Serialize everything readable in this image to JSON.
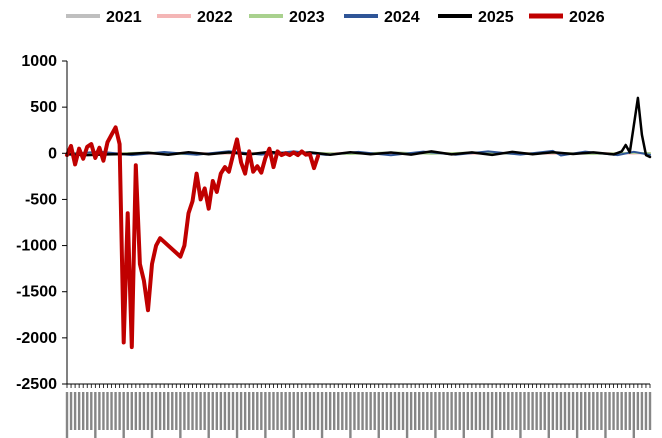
{
  "chart_data": {
    "type": "line",
    "title": "",
    "xlabel": "",
    "ylabel": "",
    "ylim": [
      -2500,
      1000
    ],
    "yticks": [
      1000,
      500,
      0,
      -500,
      -1000,
      -1500,
      -2000,
      -2500
    ],
    "ytick_labels": [
      "1000",
      "500",
      "0",
      "-500",
      "-1000",
      "-1500",
      "-2000",
      "-2500"
    ],
    "x_count": 145,
    "xticks_dense": true,
    "grid": false,
    "legend_position": "top",
    "series": [
      {
        "name": "2021",
        "color": "#bfbfbf",
        "width": 2,
        "points": [
          [
            0,
            2
          ],
          [
            10,
            -8
          ],
          [
            20,
            6
          ],
          [
            30,
            -4
          ],
          [
            40,
            5
          ],
          [
            50,
            -6
          ],
          [
            60,
            4
          ],
          [
            70,
            -3
          ],
          [
            80,
            8
          ],
          [
            90,
            -5
          ],
          [
            100,
            6
          ],
          [
            110,
            -4
          ],
          [
            120,
            3
          ],
          [
            130,
            -6
          ],
          [
            140,
            4
          ],
          [
            144,
            -2
          ]
        ]
      },
      {
        "name": "2022",
        "color": "#f4b6b6",
        "width": 2,
        "points": [
          [
            0,
            -5
          ],
          [
            10,
            6
          ],
          [
            20,
            -7
          ],
          [
            30,
            5
          ],
          [
            40,
            -4
          ],
          [
            50,
            8
          ],
          [
            60,
            -6
          ],
          [
            70,
            5
          ],
          [
            80,
            -8
          ],
          [
            90,
            6
          ],
          [
            100,
            -4
          ],
          [
            110,
            5
          ],
          [
            120,
            -6
          ],
          [
            130,
            4
          ],
          [
            140,
            -3
          ],
          [
            144,
            3
          ]
        ]
      },
      {
        "name": "2023",
        "color": "#a9d18e",
        "width": 2,
        "points": [
          [
            0,
            4
          ],
          [
            10,
            -6
          ],
          [
            20,
            8
          ],
          [
            30,
            -10
          ],
          [
            40,
            5
          ],
          [
            50,
            -4
          ],
          [
            60,
            7
          ],
          [
            70,
            -8
          ],
          [
            80,
            10
          ],
          [
            90,
            -6
          ],
          [
            100,
            8
          ],
          [
            110,
            -5
          ],
          [
            120,
            6
          ],
          [
            130,
            -7
          ],
          [
            140,
            5
          ],
          [
            144,
            2
          ]
        ]
      },
      {
        "name": "2024",
        "color": "#2f5597",
        "width": 2,
        "points": [
          [
            0,
            -10
          ],
          [
            8,
            18
          ],
          [
            16,
            -20
          ],
          [
            24,
            14
          ],
          [
            32,
            -16
          ],
          [
            40,
            22
          ],
          [
            48,
            -14
          ],
          [
            56,
            20
          ],
          [
            64,
            -18
          ],
          [
            72,
            15
          ],
          [
            80,
            -22
          ],
          [
            88,
            18
          ],
          [
            96,
            -16
          ],
          [
            104,
            20
          ],
          [
            112,
            -14
          ],
          [
            120,
            26
          ],
          [
            122,
            -24
          ],
          [
            128,
            18
          ],
          [
            136,
            -20
          ],
          [
            140,
            16
          ],
          [
            144,
            -18
          ]
        ]
      },
      {
        "name": "2025",
        "color": "#000000",
        "width": 2.5,
        "points": [
          [
            0,
            -10
          ],
          [
            5,
            -20
          ],
          [
            10,
            -12
          ],
          [
            15,
            -8
          ],
          [
            20,
            5
          ],
          [
            25,
            -15
          ],
          [
            30,
            12
          ],
          [
            35,
            -10
          ],
          [
            40,
            10
          ],
          [
            45,
            -12
          ],
          [
            50,
            15
          ],
          [
            55,
            -8
          ],
          [
            60,
            10
          ],
          [
            65,
            -15
          ],
          [
            70,
            12
          ],
          [
            75,
            -10
          ],
          [
            80,
            8
          ],
          [
            85,
            -14
          ],
          [
            90,
            20
          ],
          [
            95,
            -12
          ],
          [
            100,
            10
          ],
          [
            105,
            -18
          ],
          [
            110,
            15
          ],
          [
            115,
            -10
          ],
          [
            120,
            12
          ],
          [
            125,
            -8
          ],
          [
            130,
            10
          ],
          [
            135,
            -12
          ],
          [
            137,
            20
          ],
          [
            138,
            90
          ],
          [
            139,
            10
          ],
          [
            140,
            300
          ],
          [
            141,
            600
          ],
          [
            142,
            200
          ],
          [
            143,
            -20
          ],
          [
            144,
            -40
          ]
        ]
      },
      {
        "name": "2026",
        "color": "#c00000",
        "width": 4,
        "points": [
          [
            0,
            -20
          ],
          [
            1,
            80
          ],
          [
            2,
            -120
          ],
          [
            3,
            50
          ],
          [
            4,
            -60
          ],
          [
            5,
            70
          ],
          [
            6,
            100
          ],
          [
            7,
            -50
          ],
          [
            8,
            60
          ],
          [
            9,
            -80
          ],
          [
            10,
            120
          ],
          [
            11,
            200
          ],
          [
            12,
            280
          ],
          [
            13,
            100
          ],
          [
            14,
            -2050
          ],
          [
            15,
            -650
          ],
          [
            16,
            -2100
          ],
          [
            17,
            -130
          ],
          [
            18,
            -1200
          ],
          [
            19,
            -1380
          ],
          [
            20,
            -1700
          ],
          [
            21,
            -1200
          ],
          [
            22,
            -1000
          ],
          [
            23,
            -920
          ],
          [
            28,
            -1120
          ],
          [
            29,
            -1000
          ],
          [
            30,
            -650
          ],
          [
            31,
            -520
          ],
          [
            32,
            -220
          ],
          [
            33,
            -500
          ],
          [
            34,
            -380
          ],
          [
            35,
            -600
          ],
          [
            36,
            -300
          ],
          [
            37,
            -420
          ],
          [
            38,
            -220
          ],
          [
            39,
            -150
          ],
          [
            40,
            -200
          ],
          [
            41,
            -20
          ],
          [
            42,
            150
          ],
          [
            43,
            -100
          ],
          [
            44,
            -220
          ],
          [
            45,
            20
          ],
          [
            46,
            -200
          ],
          [
            47,
            -140
          ],
          [
            48,
            -210
          ],
          [
            49,
            -50
          ],
          [
            50,
            50
          ],
          [
            51,
            -150
          ],
          [
            52,
            20
          ],
          [
            53,
            -20
          ],
          [
            54,
            0
          ],
          [
            55,
            -20
          ],
          [
            56,
            10
          ],
          [
            57,
            -20
          ],
          [
            58,
            20
          ],
          [
            59,
            -15
          ],
          [
            60,
            -10
          ],
          [
            61,
            -160
          ],
          [
            62,
            -30
          ]
        ]
      }
    ]
  }
}
